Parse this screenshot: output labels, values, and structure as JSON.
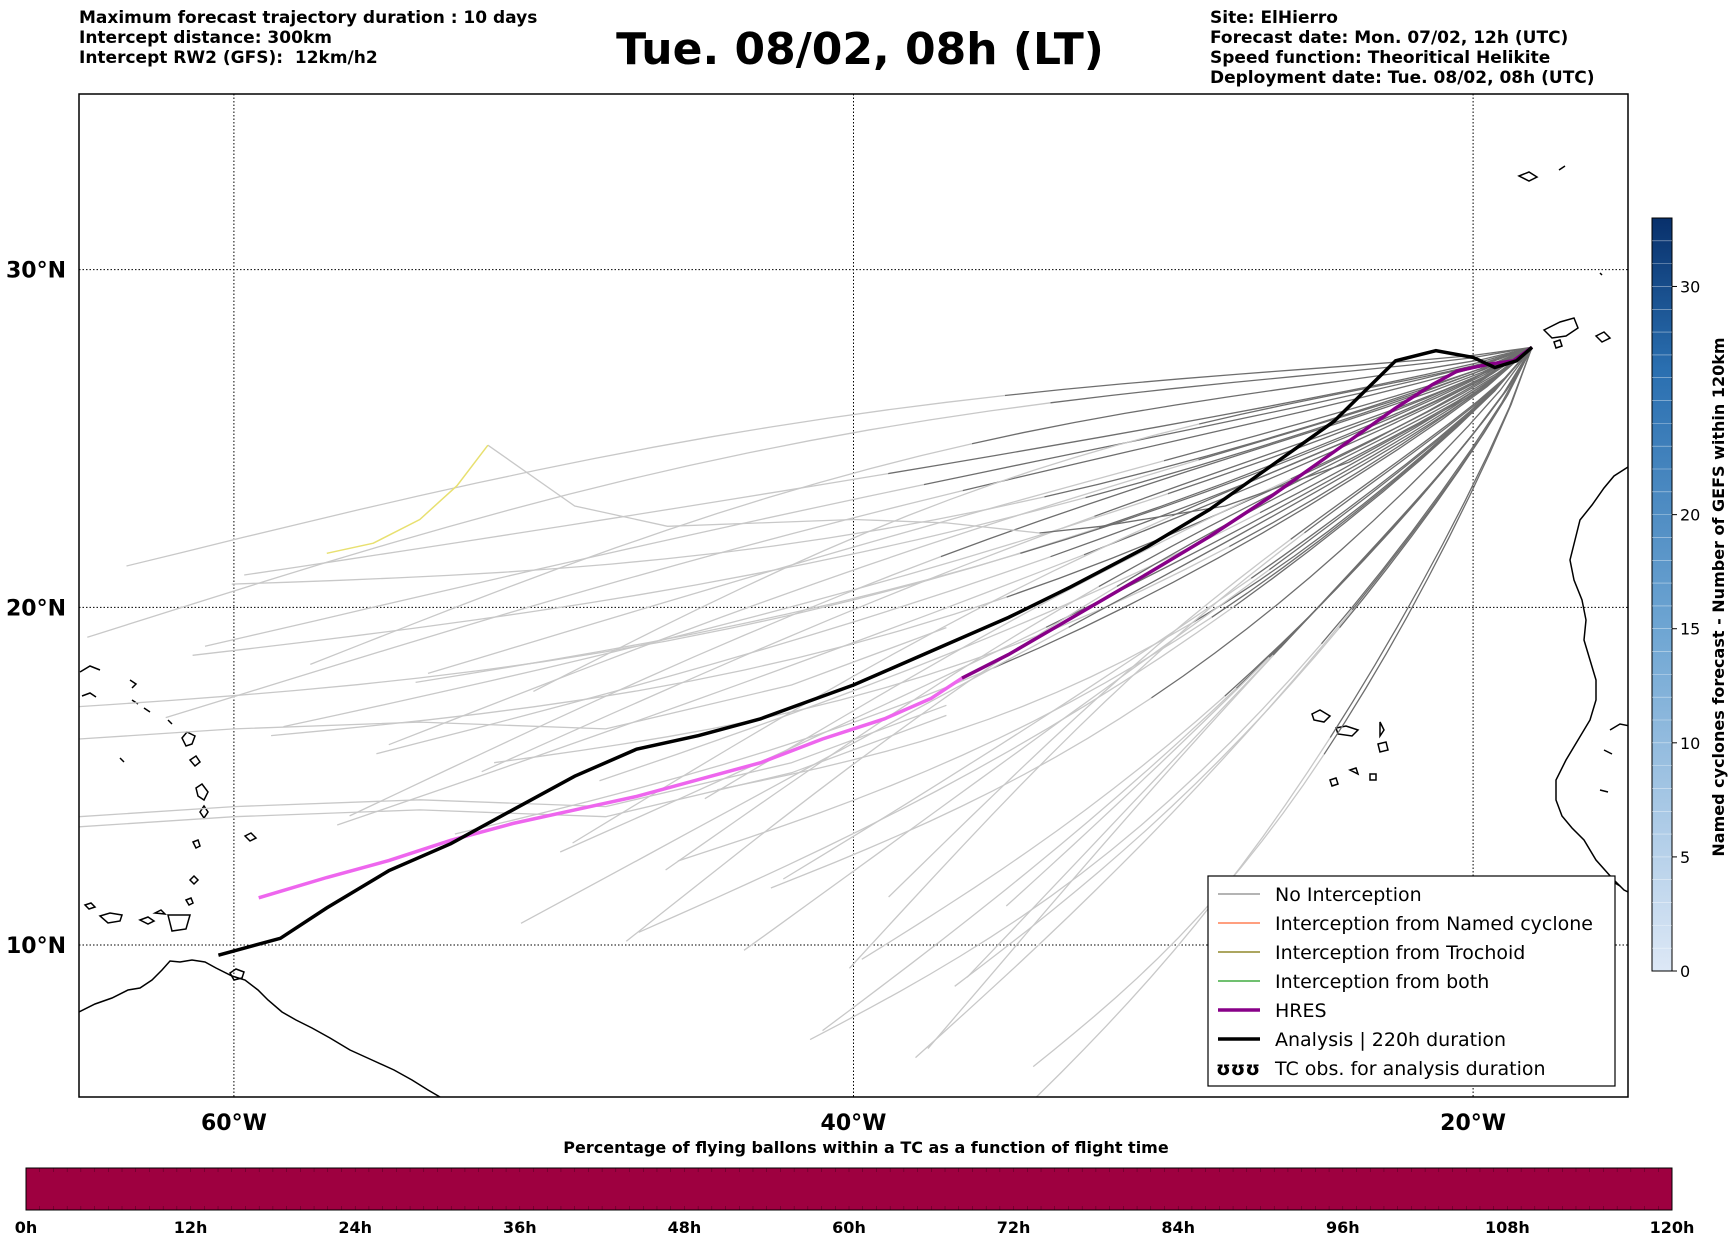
{
  "header": {
    "left": [
      "Maximum forecast trajectory duration : 10 days",
      "Intercept distance: 300km",
      "Intercept RW2 (GFS):  12km/h2"
    ],
    "title": "Tue. 08/02, 08h (LT)",
    "right": [
      "Site: ElHierro",
      "Forecast date: Mon. 07/02, 12h (UTC)",
      "Speed function: Theoritical Helikite",
      "Deployment date: Tue. 08/02, 08h (UTC)"
    ]
  },
  "map": {
    "lat_range": [
      5.5,
      35.2
    ],
    "lon_range": [
      -65,
      -15
    ],
    "lat_ticks": [
      "10°N",
      "20°N",
      "30°N"
    ],
    "lon_ticks": [
      "60°W",
      "40°W",
      "20°W"
    ],
    "grid": true,
    "site": {
      "lon": -18.1,
      "lat": 27.7
    },
    "hres_color": "#880088",
    "hres_early_color": "#ee66ee",
    "analysis_color": "#000000",
    "hres_track": [
      [
        -18.1,
        27.7
      ],
      [
        -18.7,
        27.3
      ],
      [
        -19.5,
        27.2
      ],
      [
        -20.5,
        27.0
      ],
      [
        -21.3,
        26.6
      ],
      [
        -22.5,
        25.9
      ],
      [
        -24.5,
        24.6
      ],
      [
        -26.5,
        23.3
      ],
      [
        -28.5,
        22.1
      ],
      [
        -30.5,
        21.0
      ],
      [
        -32,
        20.2
      ],
      [
        -33.5,
        19.4
      ],
      [
        -35,
        18.6
      ],
      [
        -36.5,
        17.9
      ],
      [
        -37.5,
        17.3
      ],
      [
        -39,
        16.7
      ],
      [
        -41,
        16.1
      ],
      [
        -43,
        15.4
      ],
      [
        -45,
        14.9
      ],
      [
        -47,
        14.4
      ],
      [
        -49,
        14.0
      ],
      [
        -51,
        13.6
      ],
      [
        -53,
        13.1
      ],
      [
        -55,
        12.5
      ],
      [
        -57,
        12.0
      ],
      [
        -59.2,
        11.4
      ]
    ],
    "analysis_track": [
      [
        -18.1,
        27.7
      ],
      [
        -18.6,
        27.3
      ],
      [
        -19.3,
        27.1
      ],
      [
        -20.0,
        27.4
      ],
      [
        -21.2,
        27.6
      ],
      [
        -22.5,
        27.3
      ],
      [
        -24.5,
        25.5
      ],
      [
        -26.5,
        24.2
      ],
      [
        -28.5,
        22.9
      ],
      [
        -30.5,
        21.8
      ],
      [
        -33,
        20.6
      ],
      [
        -35,
        19.7
      ],
      [
        -37,
        18.9
      ],
      [
        -39,
        18.1
      ],
      [
        -40,
        17.7
      ],
      [
        -41.5,
        17.2
      ],
      [
        -43,
        16.7
      ],
      [
        -45,
        16.2
      ],
      [
        -47,
        15.8
      ],
      [
        -49,
        15.0
      ],
      [
        -51,
        14.0
      ],
      [
        -53,
        13.0
      ],
      [
        -55,
        12.2
      ],
      [
        -57,
        11.1
      ],
      [
        -58.5,
        10.2
      ],
      [
        -60.5,
        9.7
      ]
    ],
    "highlight_track": [
      [
        -57,
        21.6
      ],
      [
        -55.5,
        21.9
      ],
      [
        -54,
        22.6
      ],
      [
        -52.8,
        23.6
      ],
      [
        -51.8,
        24.8
      ]
    ],
    "highlight_color": "#e8e070"
  },
  "legend": {
    "items": [
      {
        "label": "No Interception",
        "color": "#888888",
        "width": 1.3
      },
      {
        "label": "Interception from Named cyclone",
        "color": "#ff6633",
        "width": 1.3
      },
      {
        "label": "Interception from Trochoid",
        "color": "#7a7000",
        "width": 1.3
      },
      {
        "label": "Interception from both",
        "color": "#1a9a1a",
        "width": 1.3
      },
      {
        "label": "HRES",
        "color": "#880088",
        "width": 3.5
      },
      {
        "label": "Analysis | 220h duration",
        "color": "#000000",
        "width": 3.5
      }
    ],
    "tc_symbol": "ʊʊʊ",
    "tc_label": "TC obs. for analysis duration"
  },
  "colorbar_right": {
    "label": "Named cyclones forecast - Number of GEFS within 120km",
    "ticks": [
      "0",
      "5",
      "10",
      "15",
      "20",
      "30"
    ],
    "max": 33,
    "color_low": "#dde8f6",
    "color_high": "#08306b"
  },
  "colorbar_bottom": {
    "title": "Percentage of flying ballons within a TC as a function of flight time",
    "ticks": [
      "0h",
      "12h",
      "24h",
      "36h",
      "48h",
      "60h",
      "72h",
      "84h",
      "96h",
      "108h",
      "120h"
    ],
    "fill": "#9e0040"
  }
}
